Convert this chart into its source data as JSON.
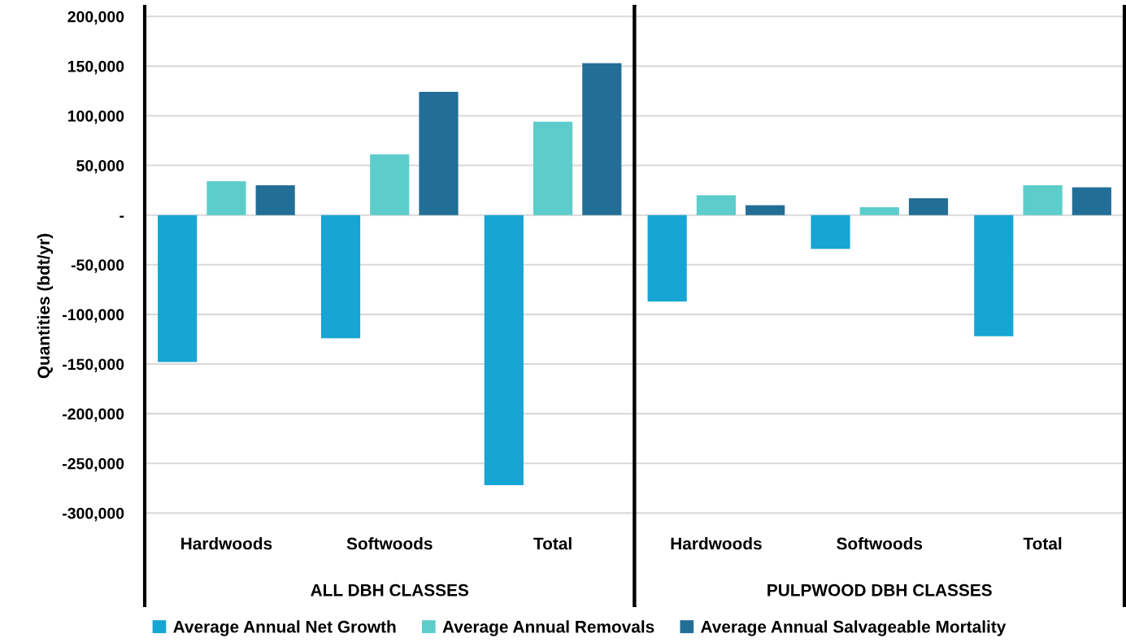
{
  "chart_data": [
    {
      "type": "bar",
      "ylabel": "Quantities (bdt/yr)",
      "xlabel": "ALL DBH CLASSES",
      "categories": [
        "Hardwoods",
        "Softwoods",
        "Total"
      ],
      "series": [
        {
          "name": "Average Annual Net Growth",
          "color": "#17a5d3",
          "values": [
            -148000,
            -124000,
            -272000
          ]
        },
        {
          "name": "Average Annual Removals",
          "color": "#5ccdcb",
          "values": [
            34000,
            61000,
            94000
          ]
        },
        {
          "name": "Average Annual Salvageable Mortality",
          "color": "#236e96",
          "values": [
            30000,
            124000,
            153000
          ]
        }
      ],
      "ylim": [
        -393000,
        210000
      ],
      "yticks": [
        {
          "value": 200000,
          "label": "200,000"
        },
        {
          "value": 150000,
          "label": "150,000"
        },
        {
          "value": 100000,
          "label": "100,000"
        },
        {
          "value": 50000,
          "label": "50,000"
        },
        {
          "value": 0,
          "label": "-"
        },
        {
          "value": -50000,
          "label": "-50,000"
        },
        {
          "value": -100000,
          "label": "-100,000"
        },
        {
          "value": -150000,
          "label": "-150,000"
        },
        {
          "value": -200000,
          "label": "-200,000"
        },
        {
          "value": -250000,
          "label": "-250,000"
        },
        {
          "value": -300000,
          "label": "-300,000"
        }
      ],
      "grid": "y",
      "legend": "bottom"
    },
    {
      "type": "bar",
      "xlabel": "PULPWOOD DBH CLASSES",
      "categories": [
        "Hardwoods",
        "Softwoods",
        "Total"
      ],
      "series": [
        {
          "color": "#17a5d3",
          "values": [
            -87000,
            -34000,
            -122000
          ]
        },
        {
          "color": "#5ccdcb",
          "values": [
            20000,
            8000,
            30000
          ]
        },
        {
          "color": "#236e96",
          "values": [
            10000,
            17000,
            28000
          ]
        }
      ],
      "ylim": [
        -393000,
        210000
      ],
      "yticks": [
        200000,
        150000,
        100000,
        50000,
        0,
        -50000,
        -100000,
        -150000,
        -200000,
        -250000,
        -300000
      ],
      "tick_labels": "x",
      "grid": "y"
    }
  ]
}
